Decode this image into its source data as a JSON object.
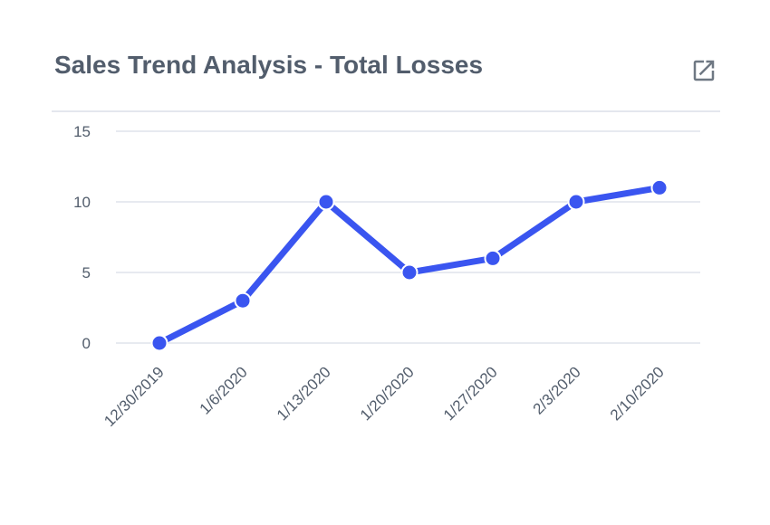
{
  "header": {
    "title": "Sales Trend Analysis - Total Losses",
    "open_icon": "open-in-new-icon"
  },
  "colors": {
    "title": "#525d6c",
    "line": "#3a55f0",
    "grid": "#dfe3ec",
    "axis_text": "#525d6c",
    "icon": "#6f7883"
  },
  "chart_data": {
    "type": "line",
    "categories": [
      "12/30/2019",
      "1/6/2020",
      "1/13/2020",
      "1/20/2020",
      "1/27/2020",
      "2/3/2020",
      "2/10/2020"
    ],
    "series": [
      {
        "values": [
          0,
          3,
          10,
          5,
          6,
          10,
          11
        ]
      }
    ],
    "ylim": [
      0,
      15
    ],
    "yticks": [
      "0",
      "5",
      "10",
      "15"
    ],
    "grid": true,
    "legend": "none"
  }
}
